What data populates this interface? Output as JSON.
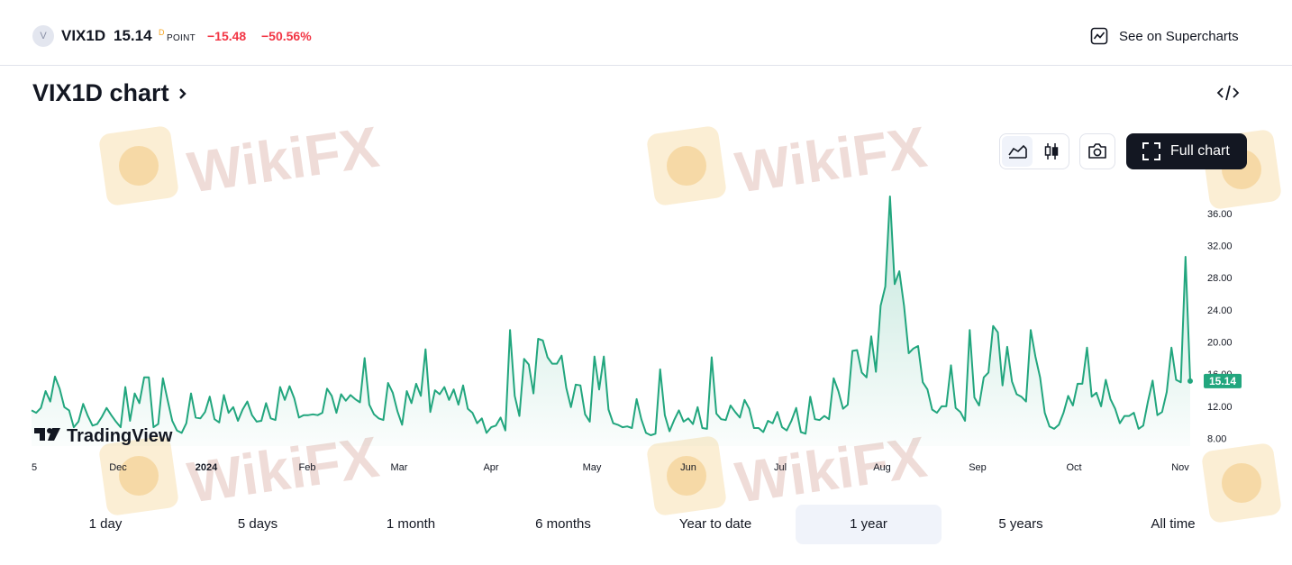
{
  "header": {
    "symbol_logo": "V",
    "symbol": "VIX1D",
    "price": "15.14",
    "price_sup": "D",
    "unit": "POINT",
    "change": "−15.48",
    "change_percent": "−50.56%",
    "supercharts_label": "See on Supercharts",
    "supercharts_icon": "chart-line-icon"
  },
  "title": "VIX1D chart",
  "toolbar": {
    "area_icon": "area-chart-icon",
    "candles_icon": "candlestick-icon",
    "snapshot_icon": "camera-icon",
    "fullchart_label": "Full chart",
    "fullchart_icon": "fullscreen-icon"
  },
  "watermark": "WikiFX",
  "brand": "TradingView",
  "ranges": [
    "1 day",
    "5 days",
    "1 month",
    "6 months",
    "Year to date",
    "1 year",
    "5 years",
    "All time"
  ],
  "selected_range": "1 year",
  "colors": {
    "line": "#22a67e",
    "negative": "#f23645",
    "button_dark": "#131722"
  },
  "chart_data": {
    "type": "area",
    "y_ticks": [
      "36.00",
      "32.00",
      "28.00",
      "24.00",
      "20.00",
      "16.00",
      "12.00",
      "8.00"
    ],
    "x_ticks": [
      "5",
      "Dec",
      "2024",
      "Feb",
      "Mar",
      "Apr",
      "May",
      "Jun",
      "Jul",
      "Aug",
      "Sep",
      "Oct",
      "Nov"
    ],
    "ylim": [
      6.5,
      39.0
    ],
    "last_value_label": "15.14",
    "values": [
      11.5,
      11.2,
      11.8,
      13.9,
      12.6,
      15.7,
      14.2,
      11.9,
      11.5,
      9.4,
      10.1,
      12.3,
      10.8,
      9.6,
      9.8,
      10.7,
      11.8,
      10.9,
      10.1,
      9.4,
      14.4,
      10.2,
      13.6,
      12.4,
      15.6,
      15.6,
      9.4,
      9.8,
      15.5,
      12.8,
      10.2,
      9.0,
      8.7,
      9.9,
      13.6,
      10.6,
      10.5,
      11.3,
      13.2,
      10.4,
      10.0,
      13.4,
      11.2,
      11.9,
      10.2,
      11.6,
      12.6,
      10.9,
      10.1,
      10.2,
      12.4,
      10.5,
      10.3,
      14.4,
      12.8,
      14.5,
      13.0,
      10.6,
      10.9,
      10.9,
      11.0,
      10.9,
      11.2,
      14.2,
      13.3,
      11.2,
      13.5,
      12.7,
      13.4,
      12.9,
      12.5,
      18.0,
      12.2,
      11.0,
      10.5,
      10.3,
      14.9,
      13.7,
      11.4,
      9.7,
      13.9,
      12.4,
      14.8,
      13.3,
      19.1,
      11.3,
      14.0,
      13.5,
      14.4,
      12.8,
      14.1,
      12.2,
      14.6,
      11.7,
      11.2,
      9.9,
      10.5,
      8.7,
      9.4,
      9.6,
      10.6,
      9.0,
      21.5,
      13.3,
      10.8,
      17.9,
      17.2,
      13.6,
      20.4,
      20.2,
      18.1,
      17.3,
      17.3,
      18.3,
      14.3,
      11.9,
      14.7,
      14.6,
      11.0,
      10.1,
      18.2,
      14.1,
      18.2,
      11.6,
      9.9,
      9.7,
      9.4,
      9.5,
      9.3,
      12.9,
      10.4,
      8.7,
      8.4,
      8.6,
      16.6,
      10.9,
      8.9,
      10.3,
      11.5,
      10.1,
      10.5,
      9.8,
      11.9,
      9.3,
      9.2,
      18.1,
      11.1,
      10.4,
      10.3,
      12.1,
      11.3,
      10.6,
      12.8,
      11.7,
      9.3,
      9.3,
      8.8,
      10.2,
      9.9,
      11.3,
      9.4,
      9.0,
      10.2,
      11.8,
      8.8,
      8.6,
      13.2,
      10.4,
      10.3,
      10.8,
      10.4,
      15.5,
      13.9,
      11.7,
      12.2,
      18.9,
      19.0,
      16.2,
      15.6,
      20.7,
      16.3,
      24.5,
      26.9,
      38.1,
      27.2,
      28.8,
      24.5,
      18.6,
      19.2,
      19.5,
      15.0,
      14.1,
      11.6,
      11.2,
      12.0,
      12.0,
      17.1,
      11.8,
      11.3,
      10.2,
      21.5,
      13.1,
      12.1,
      15.6,
      16.2,
      22.0,
      21.2,
      14.6,
      19.4,
      15.1,
      13.5,
      13.2,
      12.6,
      21.5,
      18.2,
      15.6,
      11.2,
      9.5,
      9.2,
      9.7,
      11.2,
      13.3,
      12.1,
      14.8,
      14.8,
      19.3,
      13.2,
      13.7,
      12.0,
      15.3,
      12.9,
      11.7,
      9.9,
      10.8,
      10.8,
      11.2,
      9.2,
      9.6,
      12.6,
      15.2,
      10.9,
      11.3,
      13.8,
      19.3,
      15.3,
      15.0,
      30.6,
      15.14
    ]
  }
}
